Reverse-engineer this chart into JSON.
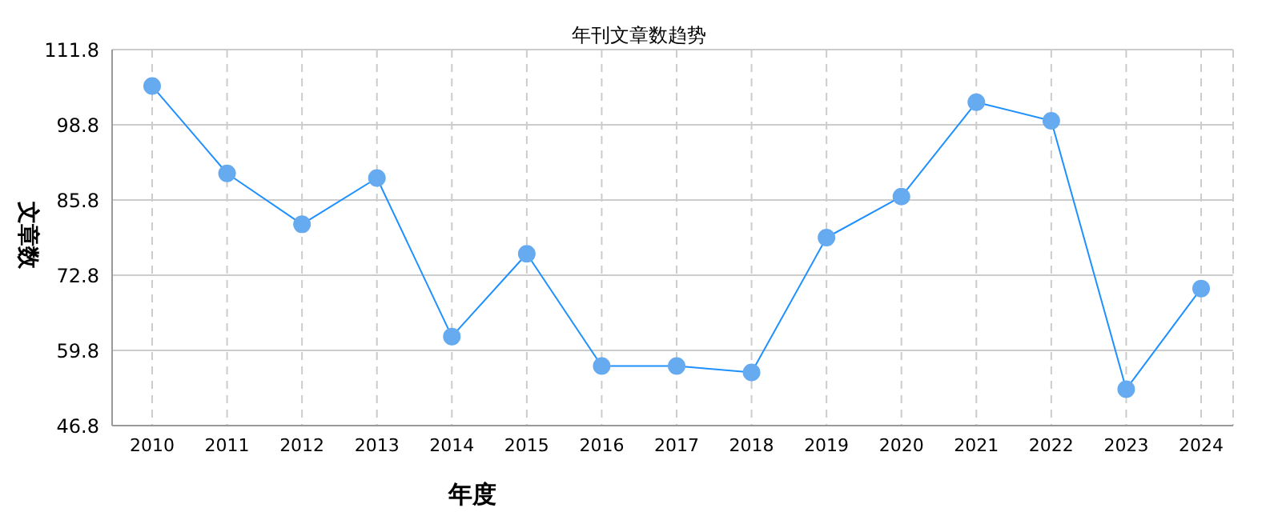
{
  "chart_data": {
    "type": "line",
    "title": "年刊文章数趋势",
    "xlabel": "年度",
    "ylabel": "文章数",
    "categories": [
      "2010",
      "2011",
      "2012",
      "2013",
      "2014",
      "2015",
      "2016",
      "2017",
      "2018",
      "2019",
      "2020",
      "2021",
      "2022",
      "2023",
      "2024"
    ],
    "series": [
      {
        "color": "#1e90ff",
        "values": [
          105.5,
          90.4,
          81.6,
          89.6,
          62.2,
          76.5,
          57.1,
          57.1,
          56.0,
          79.3,
          86.4,
          102.7,
          99.5,
          53.1,
          70.5
        ]
      }
    ],
    "ylim": [
      46.8,
      111.8
    ],
    "yticks": [
      46.8,
      59.8,
      72.8,
      85.8,
      98.8,
      111.8
    ],
    "grid": true,
    "marker": "circle",
    "line_style": "solid"
  }
}
